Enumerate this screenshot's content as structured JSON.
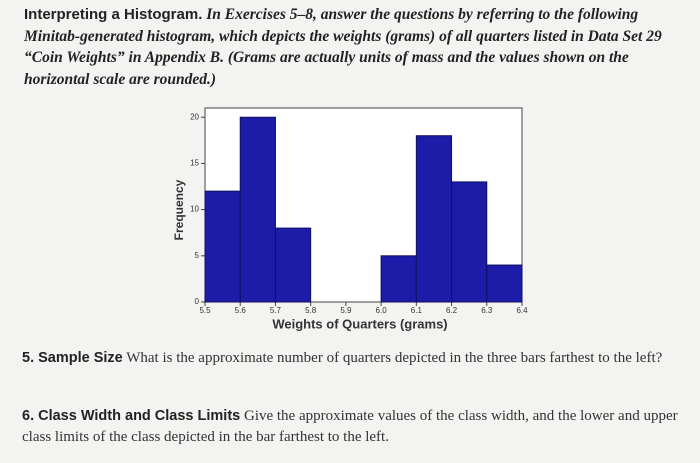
{
  "intro": {
    "title": "Interpreting a Histogram.",
    "text": "In Exercises 5–8, answer the questions by referring to the following Minitab-generated histogram, which depicts the weights (grams) of all quarters listed in Data Set 29 “Coin Weights” in Appendix B. (Grams are actually units of mass and the values shown on the horizontal scale are rounded.)"
  },
  "chart_data": {
    "type": "histogram",
    "x_label": "Weights of Quarters (grams)",
    "y_label": "Frequency",
    "bins": [
      5.5,
      5.6,
      5.7,
      5.8,
      5.9,
      6.0,
      6.1,
      6.2,
      6.3,
      6.4
    ],
    "counts": [
      12,
      20,
      8,
      0,
      0,
      5,
      18,
      13,
      4
    ],
    "color": "#1c1ca8",
    "xlim": [
      5.5,
      6.4
    ],
    "xticks": [
      5.5,
      5.6,
      5.7,
      5.8,
      5.9,
      {
        "value": 6.0,
        "label": "6.0"
      },
      6.1,
      6.2,
      6.3,
      6.4
    ],
    "ylim": [
      0,
      21
    ],
    "yticks": [
      0,
      5,
      10,
      15,
      20
    ]
  },
  "questions": [
    {
      "label": "5. Sample Size",
      "text": "What is the approximate number of quarters depicted in the three bars farthest to the left?"
    },
    {
      "label": "6. Class Width and Class Limits",
      "text": "Give the approximate values of the class width, and the lower and upper class limits of the class depicted in the bar farthest to the left."
    }
  ]
}
